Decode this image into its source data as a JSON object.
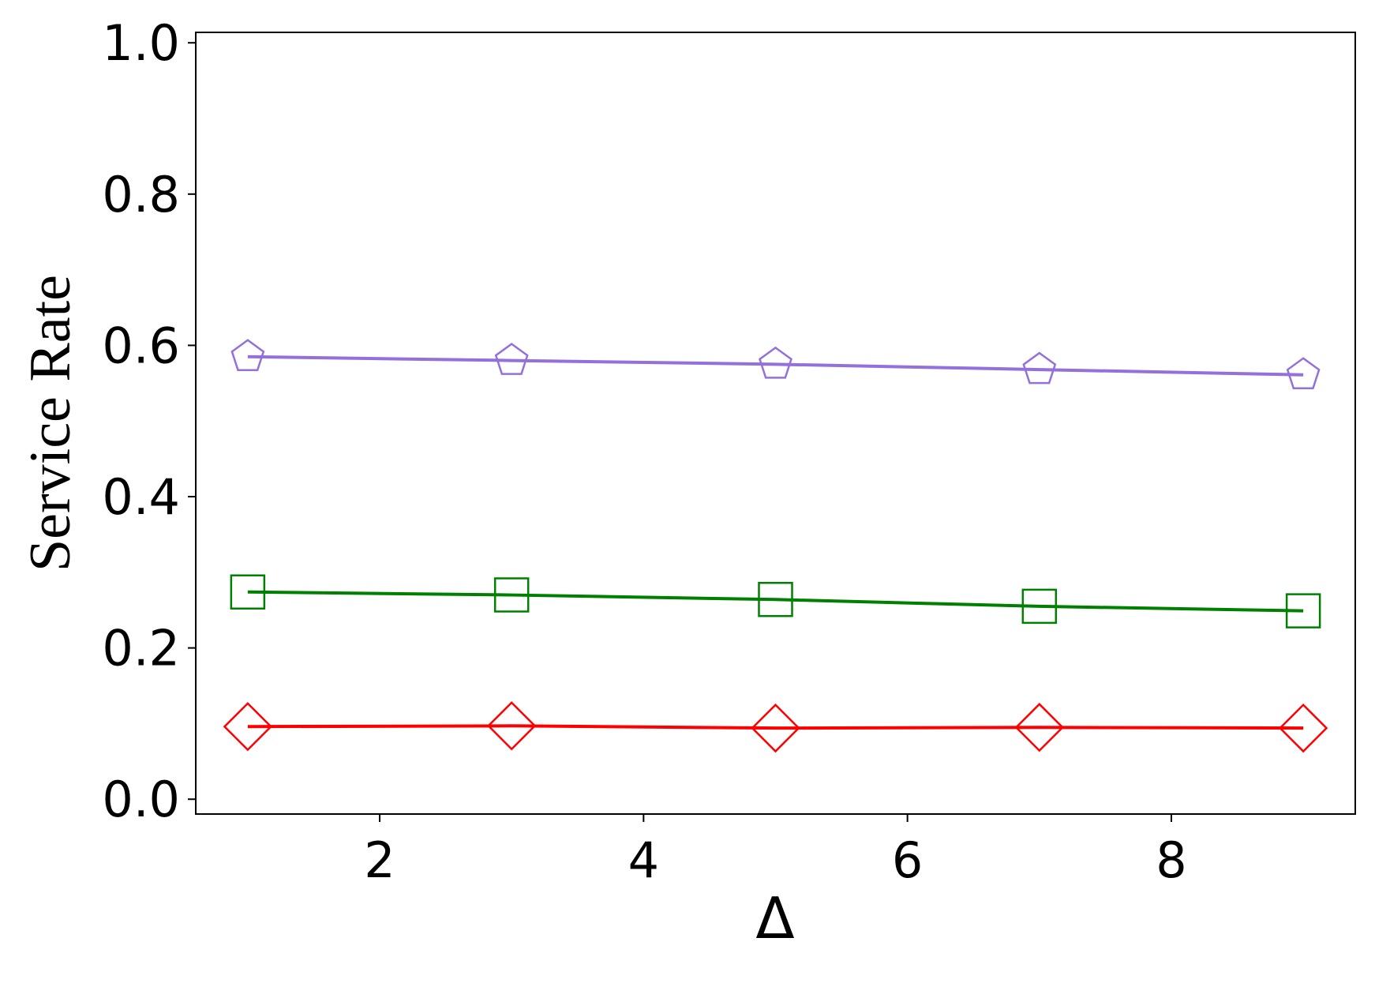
{
  "chart_data": {
    "type": "line",
    "x_label": "Δ",
    "y_label": "Service Rate",
    "x": [
      1,
      3,
      5,
      7,
      9
    ],
    "series": [
      {
        "color": "#9370db",
        "marker": "pentagon",
        "values": [
          0.585,
          0.58,
          0.575,
          0.568,
          0.561
        ]
      },
      {
        "color": "#008000",
        "marker": "square",
        "values": [
          0.274,
          0.27,
          0.264,
          0.255,
          0.249
        ]
      },
      {
        "color": "#ff0000",
        "marker": "diamond",
        "values": [
          0.096,
          0.097,
          0.094,
          0.095,
          0.094
        ]
      }
    ],
    "xlim": [
      0.606,
      9.394
    ],
    "ylim": [
      -0.0196,
      1.0138
    ],
    "xticks": [
      2,
      4,
      6,
      8
    ],
    "yticks": [
      {
        "value": 0,
        "label": "0.0"
      },
      0.2,
      0.4,
      0.6,
      0.8,
      {
        "value": 1,
        "label": "1.0"
      }
    ],
    "grid": false
  }
}
